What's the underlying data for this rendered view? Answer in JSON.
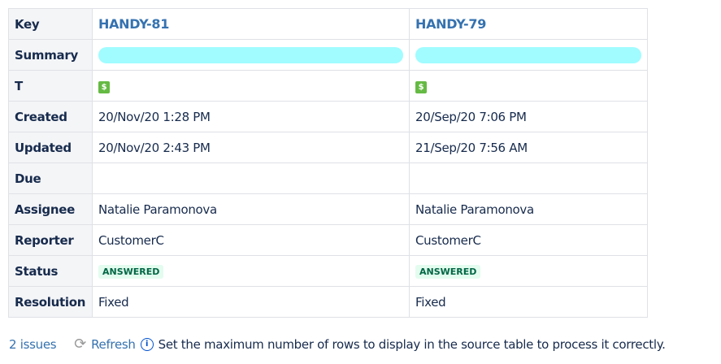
{
  "table": {
    "row_labels": {
      "key": "Key",
      "summary": "Summary",
      "type": "T",
      "created": "Created",
      "updated": "Updated",
      "due": "Due",
      "assignee": "Assignee",
      "reporter": "Reporter",
      "status": "Status",
      "resolution": "Resolution"
    },
    "issues": [
      {
        "key": "HANDY-81",
        "type_icon": "$",
        "created": "20/Nov/20 1:28 PM",
        "updated": "20/Nov/20 2:43 PM",
        "due": "",
        "assignee": "Natalie Paramonova",
        "reporter": "CustomerC",
        "status": "ANSWERED",
        "resolution": "Fixed"
      },
      {
        "key": "HANDY-79",
        "type_icon": "$",
        "created": "20/Sep/20 7:06 PM",
        "updated": "21/Sep/20 7:56 AM",
        "due": "",
        "assignee": "Natalie Paramonova",
        "reporter": "CustomerC",
        "status": "ANSWERED",
        "resolution": "Fixed"
      }
    ]
  },
  "footer": {
    "count": "2 issues",
    "refresh": "Refresh",
    "message": "Set the maximum number of rows to display in the source table to process it correctly."
  },
  "colors": {
    "link": "#3572b0",
    "status_bg": "#e3fcef",
    "status_text": "#006644",
    "type_icon": "#65ba43",
    "redaction": "#a0fcff"
  }
}
